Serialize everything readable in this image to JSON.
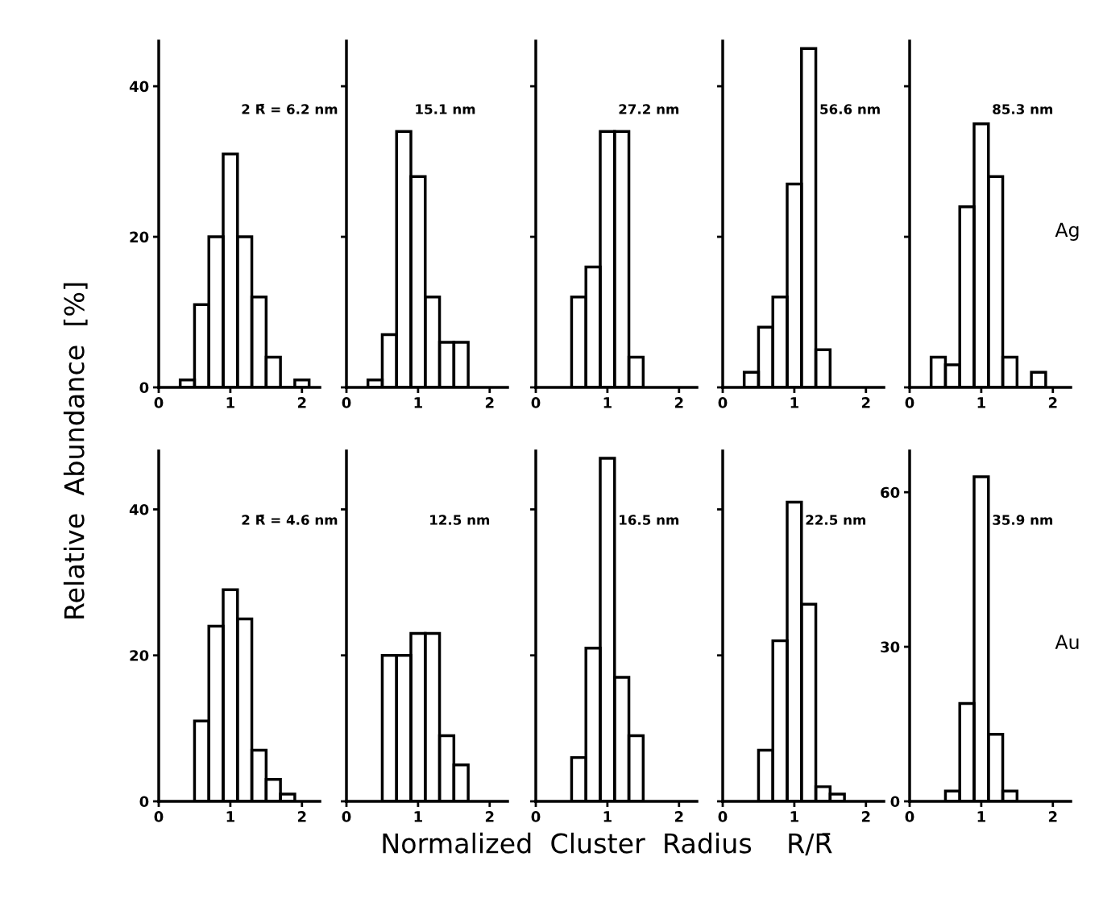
{
  "chart_data": [
    {
      "type": "histogram",
      "ylabel": "Relative  Abundance  [%]",
      "bins": [
        0.3,
        0.5,
        0.7,
        0.9,
        1.1,
        1.3,
        1.5,
        1.7,
        1.9,
        2.1
      ],
      "values": [
        1,
        11,
        20,
        31,
        20,
        12,
        4,
        0,
        1
      ],
      "xlim": [
        0,
        2.25
      ],
      "xticks": [
        0,
        1,
        2
      ],
      "ylim": [
        0,
        46
      ],
      "yticks": [
        0,
        20,
        40
      ],
      "annotations": [
        "2 R̄ = 6.2 nm"
      ]
    },
    {
      "type": "histogram",
      "bins": [
        0.3,
        0.5,
        0.7,
        0.9,
        1.1,
        1.3,
        1.5,
        1.7
      ],
      "values": [
        1,
        7,
        34,
        28,
        12,
        6,
        6
      ],
      "xlim": [
        0,
        2.25
      ],
      "xticks": [
        0,
        1,
        2
      ],
      "ylim": [
        0,
        46
      ],
      "yticks": [
        {
          "value": 0,
          "label": null
        },
        {
          "value": 20,
          "label": null
        },
        {
          "value": 40,
          "label": null
        }
      ],
      "tick_labels": "x",
      "annotations": [
        "15.1 nm"
      ]
    },
    {
      "type": "histogram",
      "bins": [
        0.5,
        0.7,
        0.9,
        1.1,
        1.3,
        1.5
      ],
      "values": [
        12,
        16,
        34,
        34,
        4
      ],
      "xlim": [
        0,
        2.25
      ],
      "xticks": [
        0,
        1,
        2
      ],
      "ylim": [
        0,
        46
      ],
      "yticks": [
        {
          "value": 0,
          "label": null
        },
        {
          "value": 20,
          "label": null
        },
        {
          "value": 40,
          "label": null
        }
      ],
      "tick_labels": "x",
      "annotations": [
        "27.2 nm"
      ]
    },
    {
      "type": "histogram",
      "bins": [
        0.3,
        0.5,
        0.7,
        0.9,
        1.1,
        1.3,
        1.5
      ],
      "values": [
        2,
        8,
        12,
        27,
        45,
        5
      ],
      "xlim": [
        0,
        2.25
      ],
      "xticks": [
        0,
        1,
        2
      ],
      "ylim": [
        0,
        46
      ],
      "yticks": [
        {
          "value": 0,
          "label": null
        },
        {
          "value": 20,
          "label": null
        },
        {
          "value": 40,
          "label": null
        }
      ],
      "tick_labels": "x",
      "annotations": [
        "56.6 nm"
      ]
    },
    {
      "type": "histogram",
      "bins": [
        0.3,
        0.5,
        0.7,
        0.9,
        1.1,
        1.3,
        1.5,
        1.7,
        1.9
      ],
      "values": [
        4,
        3,
        24,
        35,
        28,
        4,
        0,
        2
      ],
      "xlim": [
        0,
        2.25
      ],
      "xticks": [
        0,
        1,
        2
      ],
      "ylim": [
        0,
        46
      ],
      "yticks": [
        {
          "value": 0,
          "label": null
        },
        {
          "value": 20,
          "label": null
        },
        {
          "value": 40,
          "label": null
        }
      ],
      "tick_labels": "x",
      "annotations": [
        "85.3 nm",
        "Ag"
      ]
    },
    {
      "type": "histogram",
      "bins": [
        0.5,
        0.7,
        0.9,
        1.1,
        1.3,
        1.5,
        1.7,
        1.9
      ],
      "values": [
        11,
        24,
        29,
        25,
        7,
        3,
        1
      ],
      "xlim": [
        0,
        2.25
      ],
      "xticks": [
        0,
        1,
        2
      ],
      "ylim": [
        0,
        48
      ],
      "yticks": [
        0,
        20,
        40
      ],
      "annotations": [
        "2 R̄ = 4.6 nm"
      ]
    },
    {
      "type": "histogram",
      "bins": [
        0.5,
        0.7,
        0.9,
        1.1,
        1.3,
        1.5,
        1.7
      ],
      "values": [
        20,
        20,
        23,
        23,
        9,
        5
      ],
      "xlim": [
        0,
        2.25
      ],
      "xticks": [
        0,
        1,
        2
      ],
      "ylim": [
        0,
        48
      ],
      "yticks": [
        {
          "value": 0,
          "label": null
        },
        {
          "value": 20,
          "label": null
        },
        {
          "value": 40,
          "label": null
        }
      ],
      "tick_labels": "x",
      "annotations": [
        "12.5 nm"
      ]
    },
    {
      "type": "histogram",
      "xlabel": "Normalized  Cluster  Radius    R/R̄",
      "bins": [
        0.5,
        0.7,
        0.9,
        1.1,
        1.3,
        1.5
      ],
      "values": [
        6,
        21,
        47,
        17,
        9
      ],
      "xlim": [
        0,
        2.25
      ],
      "xticks": [
        0,
        1,
        2
      ],
      "ylim": [
        0,
        48
      ],
      "yticks": [
        {
          "value": 0,
          "label": null
        },
        {
          "value": 20,
          "label": null
        },
        {
          "value": 40,
          "label": null
        }
      ],
      "tick_labels": "x",
      "annotations": [
        "16.5 nm"
      ]
    },
    {
      "type": "histogram",
      "bins": [
        0.5,
        0.7,
        0.9,
        1.1,
        1.3,
        1.5,
        1.7
      ],
      "values": [
        7,
        22,
        41,
        27,
        2,
        1
      ],
      "xlim": [
        0,
        2.25
      ],
      "xticks": [
        0,
        1,
        2
      ],
      "ylim": [
        0,
        48
      ],
      "yticks": [
        {
          "value": 0,
          "label": null
        },
        {
          "value": 20,
          "label": null
        },
        {
          "value": 40,
          "label": null
        }
      ],
      "tick_labels": "x",
      "annotations": [
        "22.5 nm"
      ]
    },
    {
      "type": "histogram",
      "bins": [
        0.5,
        0.7,
        0.9,
        1.1,
        1.3,
        1.5
      ],
      "values": [
        2,
        19,
        63,
        13,
        2
      ],
      "xlim": [
        0,
        2.25
      ],
      "xticks": [
        0,
        1,
        2
      ],
      "ylim": [
        0,
        68
      ],
      "yticks": [
        0,
        30,
        60
      ],
      "annotations": [
        "35.9 nm",
        "Au"
      ]
    }
  ]
}
